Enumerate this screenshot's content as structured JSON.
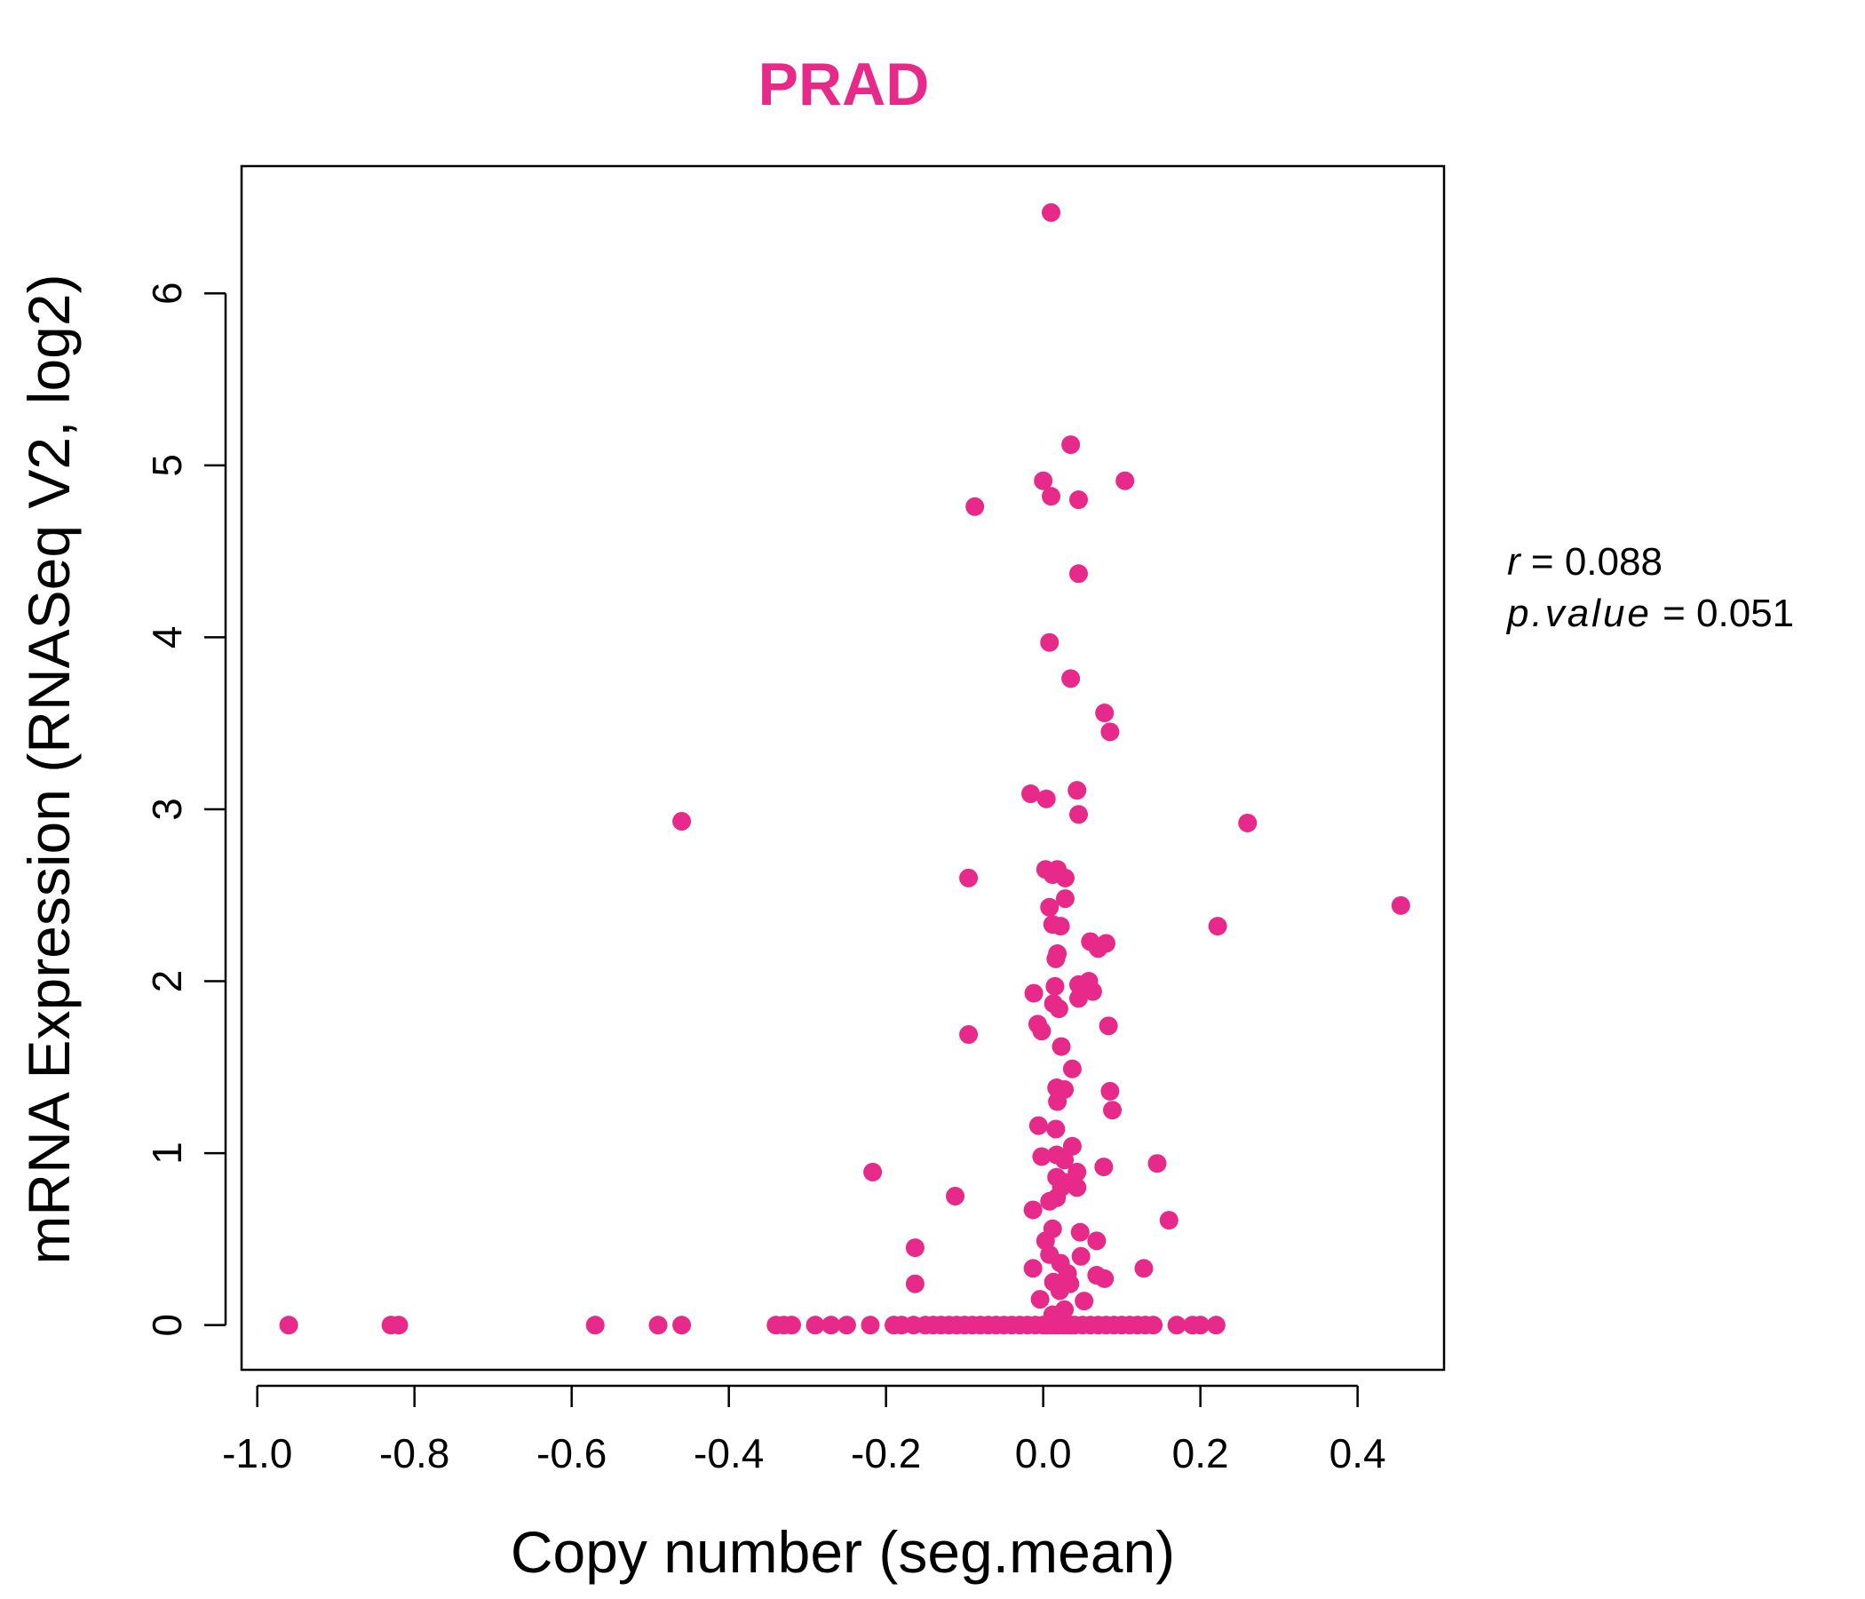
{
  "chart_data": {
    "type": "scatter",
    "title": "PRAD",
    "title_color": "#E7298A",
    "point_color": "#E7298A",
    "xlabel": "Copy number (seg.mean)",
    "ylabel": "mRNA Expression (RNASeq V2, log2)",
    "xlim": [
      -1.02,
      0.51
    ],
    "ylim": [
      -0.26,
      6.74
    ],
    "x_ticks": [
      -1.0,
      -0.8,
      -0.6,
      -0.4,
      -0.2,
      0.0,
      0.2,
      0.4
    ],
    "x_tick_labels": [
      "-1.0",
      "-0.8",
      "-0.6",
      "-0.4",
      "-0.2",
      "0.0",
      "0.2",
      "0.4"
    ],
    "y_ticks": [
      0,
      1,
      2,
      3,
      4,
      5,
      6
    ],
    "y_tick_labels": [
      "0",
      "1",
      "2",
      "3",
      "4",
      "5",
      "6"
    ],
    "grid": false,
    "legend": "none",
    "stats": {
      "r_label": "r",
      "r_value": "0.088",
      "p_label": "p.value",
      "p_value": "0.051"
    },
    "points": [
      [
        -0.96,
        0
      ],
      [
        -0.83,
        0
      ],
      [
        -0.82,
        0
      ],
      [
        -0.57,
        0
      ],
      [
        -0.49,
        0
      ],
      [
        -0.46,
        0
      ],
      [
        -0.34,
        0
      ],
      [
        -0.33,
        0
      ],
      [
        -0.32,
        0
      ],
      [
        -0.29,
        0
      ],
      [
        -0.27,
        0
      ],
      [
        -0.25,
        0
      ],
      [
        -0.22,
        0
      ],
      [
        -0.19,
        0
      ],
      [
        -0.18,
        0
      ],
      [
        -0.165,
        0
      ],
      [
        -0.15,
        0
      ],
      [
        -0.14,
        0
      ],
      [
        -0.13,
        0
      ],
      [
        -0.12,
        0
      ],
      [
        -0.11,
        0
      ],
      [
        -0.1,
        0
      ],
      [
        -0.09,
        0
      ],
      [
        -0.08,
        0
      ],
      [
        -0.07,
        0
      ],
      [
        -0.06,
        0
      ],
      [
        -0.05,
        0
      ],
      [
        -0.04,
        0
      ],
      [
        -0.03,
        0
      ],
      [
        -0.02,
        0
      ],
      [
        -0.01,
        0
      ],
      [
        0.0,
        0
      ],
      [
        0.005,
        0
      ],
      [
        0.01,
        0
      ],
      [
        0.015,
        0
      ],
      [
        0.02,
        0
      ],
      [
        0.025,
        0
      ],
      [
        0.03,
        0
      ],
      [
        0.035,
        0
      ],
      [
        0.04,
        0
      ],
      [
        0.05,
        0
      ],
      [
        0.06,
        0
      ],
      [
        0.07,
        0
      ],
      [
        0.08,
        0
      ],
      [
        0.09,
        0
      ],
      [
        0.1,
        0
      ],
      [
        0.11,
        0
      ],
      [
        0.12,
        0
      ],
      [
        0.13,
        0
      ],
      [
        0.14,
        0
      ],
      [
        0.17,
        0
      ],
      [
        0.19,
        0
      ],
      [
        0.2,
        0
      ],
      [
        0.22,
        0
      ],
      [
        0.01,
        6.47
      ],
      [
        0.035,
        5.12
      ],
      [
        0.0,
        4.91
      ],
      [
        0.104,
        4.91
      ],
      [
        0.01,
        4.82
      ],
      [
        0.045,
        4.8
      ],
      [
        -0.087,
        4.76
      ],
      [
        0.045,
        4.37
      ],
      [
        0.008,
        3.97
      ],
      [
        0.035,
        3.76
      ],
      [
        0.078,
        3.56
      ],
      [
        0.085,
        3.45
      ],
      [
        -0.016,
        3.09
      ],
      [
        0.043,
        3.11
      ],
      [
        0.004,
        3.06
      ],
      [
        0.045,
        2.97
      ],
      [
        -0.46,
        2.93
      ],
      [
        0.26,
        2.92
      ],
      [
        0.003,
        2.65
      ],
      [
        0.018,
        2.65
      ],
      [
        0.012,
        2.62
      ],
      [
        0.028,
        2.6
      ],
      [
        -0.095,
        2.6
      ],
      [
        0.028,
        2.48
      ],
      [
        0.455,
        2.44
      ],
      [
        0.008,
        2.43
      ],
      [
        0.012,
        2.33
      ],
      [
        0.022,
        2.32
      ],
      [
        0.222,
        2.32
      ],
      [
        0.06,
        2.23
      ],
      [
        0.08,
        2.22
      ],
      [
        0.07,
        2.19
      ],
      [
        0.018,
        2.16
      ],
      [
        0.016,
        2.13
      ],
      [
        0.058,
        2.0
      ],
      [
        0.045,
        1.98
      ],
      [
        0.015,
        1.97
      ],
      [
        0.063,
        1.94
      ],
      [
        -0.012,
        1.93
      ],
      [
        0.045,
        1.9
      ],
      [
        0.013,
        1.87
      ],
      [
        0.02,
        1.84
      ],
      [
        -0.007,
        1.75
      ],
      [
        0.083,
        1.74
      ],
      [
        -0.002,
        1.71
      ],
      [
        -0.095,
        1.69
      ],
      [
        0.023,
        1.62
      ],
      [
        0.037,
        1.49
      ],
      [
        0.017,
        1.38
      ],
      [
        0.027,
        1.37
      ],
      [
        0.085,
        1.36
      ],
      [
        0.018,
        1.3
      ],
      [
        0.088,
        1.25
      ],
      [
        -0.006,
        1.16
      ],
      [
        0.016,
        1.14
      ],
      [
        0.037,
        1.04
      ],
      [
        0.017,
        0.99
      ],
      [
        -0.002,
        0.98
      ],
      [
        0.027,
        0.96
      ],
      [
        0.145,
        0.94
      ],
      [
        0.077,
        0.92
      ],
      [
        -0.217,
        0.89
      ],
      [
        0.043,
        0.89
      ],
      [
        0.017,
        0.86
      ],
      [
        0.028,
        0.83
      ],
      [
        0.023,
        0.8
      ],
      [
        0.043,
        0.8
      ],
      [
        -0.112,
        0.75
      ],
      [
        0.017,
        0.74
      ],
      [
        0.008,
        0.72
      ],
      [
        -0.013,
        0.67
      ],
      [
        0.16,
        0.61
      ],
      [
        0.012,
        0.56
      ],
      [
        0.047,
        0.54
      ],
      [
        0.003,
        0.49
      ],
      [
        0.068,
        0.49
      ],
      [
        -0.163,
        0.45
      ],
      [
        0.008,
        0.41
      ],
      [
        0.048,
        0.4
      ],
      [
        0.022,
        0.36
      ],
      [
        -0.013,
        0.33
      ],
      [
        0.128,
        0.33
      ],
      [
        0.031,
        0.3
      ],
      [
        0.068,
        0.29
      ],
      [
        0.078,
        0.27
      ],
      [
        0.013,
        0.25
      ],
      [
        0.034,
        0.24
      ],
      [
        -0.163,
        0.24
      ],
      [
        0.021,
        0.2
      ],
      [
        -0.004,
        0.15
      ],
      [
        0.052,
        0.14
      ],
      [
        0.027,
        0.09
      ],
      [
        0.012,
        0.06
      ]
    ]
  }
}
